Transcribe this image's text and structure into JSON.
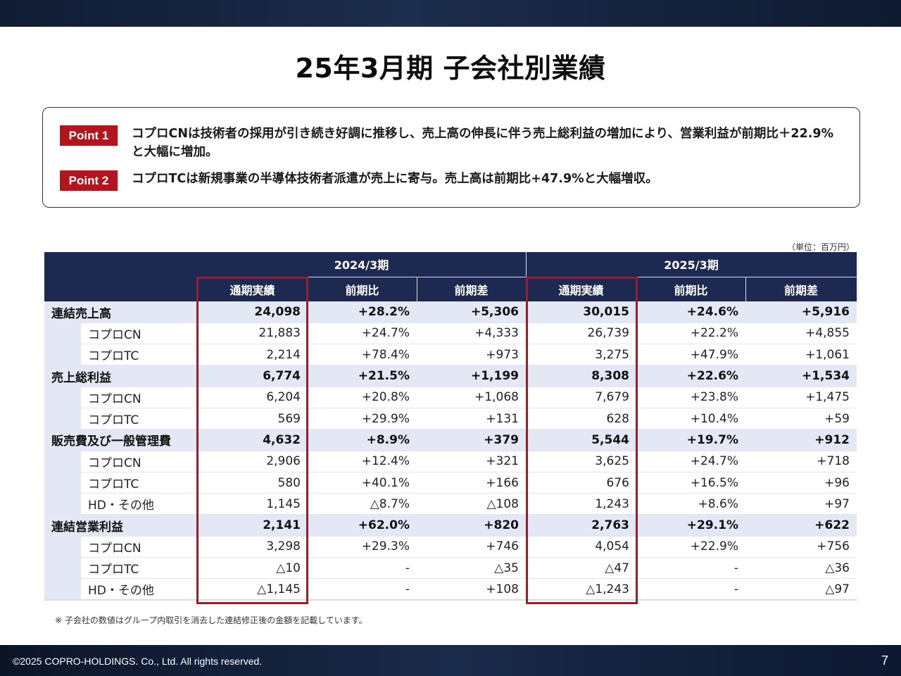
{
  "title": "25年3月期 子会社別業績",
  "points": [
    {
      "badge": "Point 1",
      "text": "コプロCNは技術者の採用が引き続き好調に推移し、売上高の伸長に伴う売上総利益の増加により、営業利益が前期比＋22.9%と大幅に増加。"
    },
    {
      "badge": "Point 2",
      "text": "コプロTCは新規事業の半導体技術者派遣が売上に寄与。売上高は前期比+47.9%と大幅増収。"
    }
  ],
  "unit": "（単位：百万円）",
  "table": {
    "periods": [
      "2024/3期",
      "2025/3期"
    ],
    "columns": [
      "通期実績",
      "前期比",
      "前期差",
      "通期実績",
      "前期比",
      "前期差"
    ],
    "rows": [
      {
        "label": "連結売上高",
        "main": true,
        "values": [
          "24,098",
          "+28.2%",
          "+5,306",
          "30,015",
          "+24.6%",
          "+5,916"
        ]
      },
      {
        "label": "コプロCN",
        "main": false,
        "values": [
          "21,883",
          "+24.7%",
          "+4,333",
          "26,739",
          "+22.2%",
          "+4,855"
        ]
      },
      {
        "label": "コプロTC",
        "main": false,
        "values": [
          "2,214",
          "+78.4%",
          "+973",
          "3,275",
          "+47.9%",
          "+1,061"
        ]
      },
      {
        "label": "売上総利益",
        "main": true,
        "values": [
          "6,774",
          "+21.5%",
          "+1,199",
          "8,308",
          "+22.6%",
          "+1,534"
        ]
      },
      {
        "label": "コプロCN",
        "main": false,
        "values": [
          "6,204",
          "+20.8%",
          "+1,068",
          "7,679",
          "+23.8%",
          "+1,475"
        ]
      },
      {
        "label": "コプロTC",
        "main": false,
        "values": [
          "569",
          "+29.9%",
          "+131",
          "628",
          "+10.4%",
          "+59"
        ]
      },
      {
        "label": "販売費及び一般管理費",
        "main": true,
        "values": [
          "4,632",
          "+8.9%",
          "+379",
          "5,544",
          "+19.7%",
          "+912"
        ]
      },
      {
        "label": "コプロCN",
        "main": false,
        "values": [
          "2,906",
          "+12.4%",
          "+321",
          "3,625",
          "+24.7%",
          "+718"
        ]
      },
      {
        "label": "コプロTC",
        "main": false,
        "values": [
          "580",
          "+40.1%",
          "+166",
          "676",
          "+16.5%",
          "+96"
        ]
      },
      {
        "label": "HD・その他",
        "main": false,
        "values": [
          "1,145",
          "△8.7%",
          "△108",
          "1,243",
          "+8.6%",
          "+97"
        ]
      },
      {
        "label": "連結営業利益",
        "main": true,
        "values": [
          "2,141",
          "+62.0%",
          "+820",
          "2,763",
          "+29.1%",
          "+622"
        ]
      },
      {
        "label": "コプロCN",
        "main": false,
        "values": [
          "3,298",
          "+29.3%",
          "+746",
          "4,054",
          "+22.9%",
          "+756"
        ]
      },
      {
        "label": "コプロTC",
        "main": false,
        "values": [
          "△10",
          "-",
          "△35",
          "△47",
          "-",
          "△36"
        ]
      },
      {
        "label": "HD・その他",
        "main": false,
        "values": [
          "△1,145",
          "-",
          "+108",
          "△1,243",
          "-",
          "△97"
        ]
      }
    ]
  },
  "footnote": "※ 子会社の数値はグループ内取引を消去した連結修正後の金額を記載しています。",
  "footer": {
    "copyright": "©2025 COPRO-HOLDINGS. Co., Ltd. All rights reserved.",
    "page": "7"
  },
  "colors": {
    "navy": "#1d2950",
    "accent_red": "#b3151e",
    "highlight_red": "#c00d1c",
    "row_shade": "#e4e8f4"
  }
}
